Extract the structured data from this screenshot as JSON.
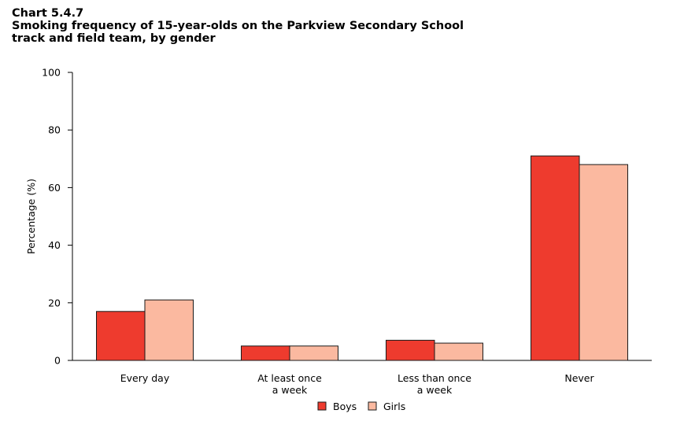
{
  "chart_data": {
    "type": "bar",
    "chart_number": "Chart 5.4.7",
    "title_lines": [
      "Smoking frequency of 15-year-olds on the Parkview Secondary School",
      "track and field team, by gender"
    ],
    "ylabel": "Percentage (%)",
    "ylim": [
      0,
      100
    ],
    "yticks": [
      0,
      20,
      40,
      60,
      80,
      100
    ],
    "categories": [
      [
        "Every day"
      ],
      [
        "At least once",
        "a week"
      ],
      [
        "Less than once",
        "a week"
      ],
      [
        "Never"
      ]
    ],
    "series": [
      {
        "name": "Boys",
        "color": "#ee3b2e",
        "values": [
          17,
          5,
          7,
          71
        ]
      },
      {
        "name": "Girls",
        "color": "#fbb9a0",
        "values": [
          21,
          5,
          6,
          68
        ]
      }
    ],
    "grid": false,
    "legend_position": "bottom-center"
  }
}
